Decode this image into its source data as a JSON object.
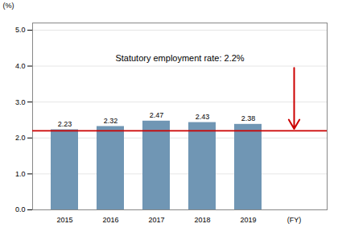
{
  "chart_data": {
    "type": "bar",
    "categories": [
      "2015",
      "2016",
      "2017",
      "2018",
      "2019",
      "(FY)"
    ],
    "values": [
      2.23,
      2.32,
      2.47,
      2.43,
      2.38,
      null
    ],
    "color": "#7096b4",
    "data_labels": true,
    "ylabel": "(%)",
    "ylim": [
      0,
      5.2
    ],
    "yticks": [
      {
        "value": 0,
        "label": "0.0"
      },
      {
        "value": 1.0,
        "label": "1.0"
      },
      {
        "value": 2.0,
        "label": "2.0"
      },
      {
        "value": 3.0,
        "label": "3.0"
      },
      {
        "value": 4.0,
        "label": "4.0"
      },
      {
        "value": 5.0,
        "label": "5.0"
      }
    ],
    "grid": true,
    "reference_line": {
      "value": 2.2,
      "label": "Statutory employment rate: 2.2%",
      "color": "#cc0000"
    },
    "arrow": {
      "x": "(FY)",
      "y_start": 3.95,
      "y_end": 2.25,
      "color": "#cc0000"
    }
  }
}
